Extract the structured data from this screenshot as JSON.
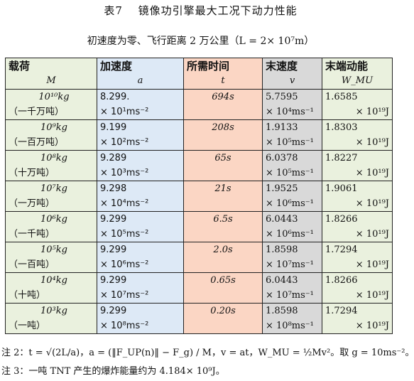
{
  "title": "表7　 镜像功引擎最大工况下动力性能",
  "subtitle": "初速度为零、飞行距离 2 万公里（L = 2× 10⁷m）",
  "headers": [
    {
      "name": "载荷",
      "symbol": "M"
    },
    {
      "name": "加速度",
      "symbol": "a"
    },
    {
      "name": "所需时间",
      "symbol": "t"
    },
    {
      "name": "末速度",
      "symbol": "v"
    },
    {
      "name": "末端动能",
      "symbol": "W_MU"
    }
  ],
  "rows": [
    {
      "mass": "10¹⁰kg",
      "mass_note": "（一千万吨）",
      "accel_1": "8.299.",
      "accel_2": "× 10¹ms⁻²",
      "time": "694s",
      "vel_1": "5.7595",
      "vel_2": "× 10⁴ms⁻¹",
      "energy_1": "1.6585",
      "energy_2": "× 10¹⁹J"
    },
    {
      "mass": "10⁹kg",
      "mass_note": "（一百万吨）",
      "accel_1": "9.199",
      "accel_2": "× 10²ms⁻²",
      "time": "208s",
      "vel_1": "1.9133",
      "vel_2": "× 10⁵ms⁻¹",
      "energy_1": "1.8303",
      "energy_2": "× 10¹⁹J"
    },
    {
      "mass": "10⁸kg",
      "mass_note": "（十万吨）",
      "accel_1": "9.289",
      "accel_2": "× 10³ms⁻²",
      "time": "65s",
      "vel_1": "6.0378",
      "vel_2": "× 10⁵ms⁻¹",
      "energy_1": "1.8227",
      "energy_2": "× 10¹⁹J"
    },
    {
      "mass": "10⁷kg",
      "mass_note": "（一万吨）",
      "accel_1": "9.298",
      "accel_2": "× 10⁴ms⁻²",
      "time": "21s",
      "vel_1": "1.9525",
      "vel_2": "× 10⁶ms⁻¹",
      "energy_1": "1.9061",
      "energy_2": "× 10¹⁹J"
    },
    {
      "mass": "10⁶kg",
      "mass_note": "（一千吨）",
      "accel_1": "9.299",
      "accel_2": "× 10⁵ms⁻²",
      "time": "6.5s",
      "vel_1": "6.0443",
      "vel_2": "× 10⁶ms⁻¹",
      "energy_1": "1.8266",
      "energy_2": "× 10¹⁹J"
    },
    {
      "mass": "10⁵kg",
      "mass_note": "（一百吨）",
      "accel_1": "9.299",
      "accel_2": "× 10⁶ms⁻²",
      "time": "2.0s",
      "vel_1": "1.8598",
      "vel_2": "× 10⁷ms⁻¹",
      "energy_1": "1.7294",
      "energy_2": "× 10¹⁹J"
    },
    {
      "mass": "10⁴kg",
      "mass_note": "（十吨）",
      "accel_1": "9.299",
      "accel_2": "× 10⁷ms⁻²",
      "time": "0.65s",
      "vel_1": "6.0443",
      "vel_2": "× 10⁷ms⁻¹",
      "energy_1": "1.8266",
      "energy_2": "× 10¹⁹J"
    },
    {
      "mass": "10³kg",
      "mass_note": "（一吨）",
      "accel_1": "9.299",
      "accel_2": "× 10⁸ms⁻²",
      "time": "0.20s",
      "vel_1": "1.8598",
      "vel_2": "× 10⁸ms⁻¹",
      "energy_1": "1.7294",
      "energy_2": "× 10¹⁹J"
    }
  ],
  "notes": [
    "注 2：t = √(2L/a)，a = (‖F_UP(n)‖ − F_g) / M，v = at，W_MU = ½Mv²。取 g = 10ms⁻²。",
    "注 3：一吨 TNT 产生的爆炸能量约为 4.184× 10⁹J。"
  ]
}
